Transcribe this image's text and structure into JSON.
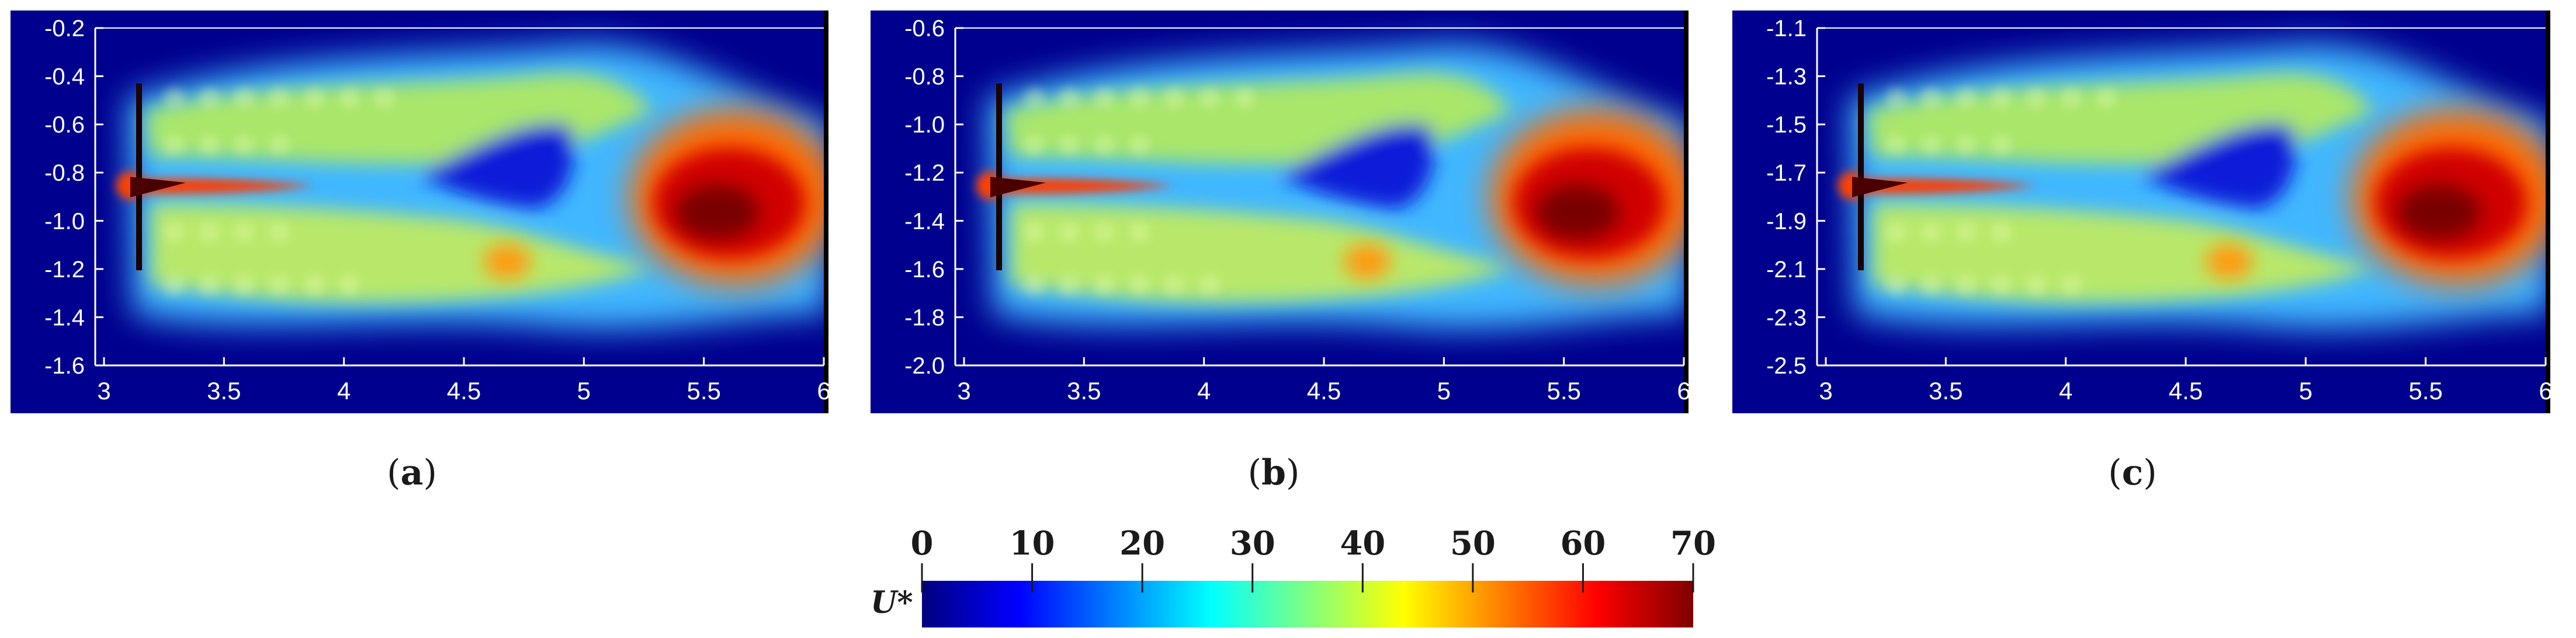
{
  "panels": [
    {
      "caption_letter": "a",
      "x_ticks": [
        "3",
        "3.5",
        "4",
        "4.5",
        "5",
        "5.5",
        "6"
      ],
      "y_ticks": [
        "-0.2",
        "-0.4",
        "-0.6",
        "-0.8",
        "-1.0",
        "-1.2",
        "-1.4",
        "-1.6"
      ]
    },
    {
      "caption_letter": "b",
      "x_ticks": [
        "3",
        "3.5",
        "4",
        "4.5",
        "5",
        "5.5",
        "6"
      ],
      "y_ticks": [
        "-0.6",
        "-0.8",
        "-1.0",
        "-1.2",
        "-1.4",
        "-1.6",
        "-1.8",
        "-2.0"
      ]
    },
    {
      "caption_letter": "c",
      "x_ticks": [
        "3",
        "3.5",
        "4",
        "4.5",
        "5",
        "5.5",
        "6"
      ],
      "y_ticks": [
        "-1.1",
        "-1.3",
        "-1.5",
        "-1.7",
        "-1.9",
        "-2.1",
        "-2.3",
        "-2.5"
      ]
    }
  ],
  "colorbar": {
    "label": "U*",
    "ticks": [
      "0",
      "10",
      "20",
      "30",
      "40",
      "50",
      "60",
      "70"
    ],
    "colormap": [
      "#00007f",
      "#0000ff",
      "#0080ff",
      "#00ffff",
      "#80ff80",
      "#ffff00",
      "#ff8000",
      "#ff0000",
      "#7f0000"
    ]
  },
  "chart_data": [
    {
      "type": "heatmap",
      "panel": "a",
      "xlim": [
        3,
        6
      ],
      "ylim": [
        -1.6,
        -0.2
      ],
      "colorbar_range": [
        0,
        70
      ]
    },
    {
      "type": "heatmap",
      "panel": "b",
      "xlim": [
        3,
        6
      ],
      "ylim": [
        -2.0,
        -0.6
      ],
      "colorbar_range": [
        0,
        70
      ]
    },
    {
      "type": "heatmap",
      "panel": "c",
      "xlim": [
        3,
        6
      ],
      "ylim": [
        -2.5,
        -1.1
      ],
      "colorbar_range": [
        0,
        70
      ]
    }
  ]
}
